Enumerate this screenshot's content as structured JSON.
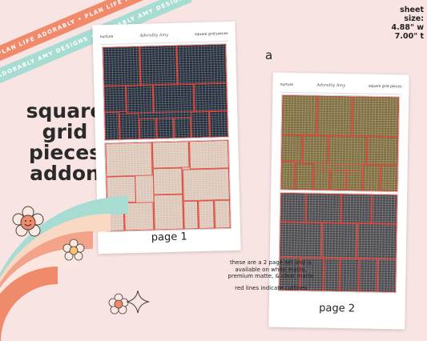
{
  "ribbons": {
    "top": "PLAN LIFE ADORABLY • PLAN LIFE ADORABLY",
    "bottom": "ADORABLY AMY DESIGNS • ADORABLY AMY DESIGNS"
  },
  "sheet_size": {
    "label": "sheet size:",
    "width": "4.88\" w",
    "height": "7.00\" t"
  },
  "title": {
    "line1": "square grid",
    "line2": "pieces",
    "line3": "addon"
  },
  "letter": "a",
  "card1": {
    "header_left": "nurture",
    "header_logo": "Adorably Amy",
    "header_right": "square grid pieces",
    "top_color": "#232d3b",
    "bottom_color": "#dcc6b8",
    "label": "page 1"
  },
  "card2": {
    "header_left": "nurture",
    "header_logo": "Adorably Amy",
    "header_right": "square grid pieces",
    "top_color": "#7e6d3e",
    "bottom_color": "#4a4a4f",
    "label": "page 2"
  },
  "info": {
    "line1": "these are a 2 page set and is available on white matte, premium matte, & clear matte",
    "line2": "red lines indicate cutlines"
  },
  "colors": {
    "cutline": "#e0483c",
    "background": "#f8e4e3",
    "accent_coral": "#f08a6b",
    "accent_teal": "#a7dcd2"
  }
}
